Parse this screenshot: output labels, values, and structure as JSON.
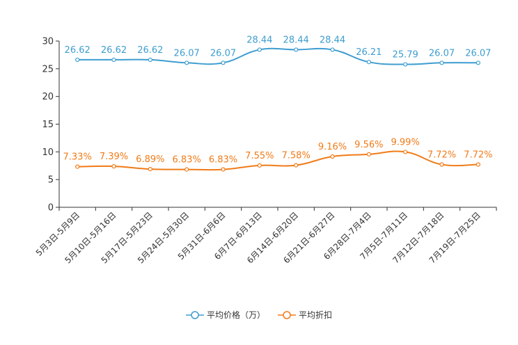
{
  "chart_data": {
    "type": "line",
    "categories": [
      "5月3日-5月9日",
      "5月10日-5月16日",
      "5月17日-5月23日",
      "5月24日-5月30日",
      "5月31日-6月6日",
      "6月7日-6月13日",
      "6月14日-6月20日",
      "6月21日-6月27日",
      "6月28日-7月4日",
      "7月5日-7月11日",
      "7月12日-7月18日",
      "7月19日-7月25日"
    ],
    "ylim": [
      0,
      30
    ],
    "yticks": [
      "0",
      "5",
      "10",
      "15",
      "20",
      "25",
      "30"
    ],
    "series": [
      {
        "name": "平均价格（万）",
        "color": "#3d9dd0",
        "values": [
          26.62,
          26.62,
          26.62,
          26.07,
          26.07,
          28.44,
          28.44,
          28.44,
          26.21,
          25.79,
          26.07,
          26.07
        ],
        "labels": [
          "26.62",
          "26.62",
          "26.62",
          "26.07",
          "26.07",
          "28.44",
          "28.44",
          "28.44",
          "26.21",
          "25.79",
          "26.07",
          "26.07"
        ]
      },
      {
        "name": "平均折扣",
        "color": "#f07b18",
        "values": [
          7.33,
          7.39,
          6.89,
          6.83,
          6.83,
          7.55,
          7.58,
          9.16,
          9.56,
          9.99,
          7.72,
          7.72
        ],
        "labels": [
          "7.33%",
          "7.39%",
          "6.89%",
          "6.83%",
          "6.83%",
          "7.55%",
          "7.58%",
          "9.16%",
          "9.56%",
          "9.99%",
          "7.72%",
          "7.72%"
        ]
      }
    ],
    "legend_position": "bottom"
  }
}
